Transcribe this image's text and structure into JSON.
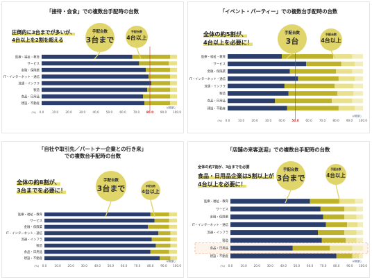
{
  "panels": [
    {
      "title_lines": [
        "「接待・会食」での複数台手配時の台数"
      ],
      "callout": [
        "圧倒的に3台までが多いが、",
        "4台以上を2割を超える"
      ],
      "bubbles": [
        {
          "top": "手配台数",
          "big": "3台まで"
        },
        {
          "top": "手配台数",
          "big": "4台以上"
        }
      ],
      "category_labels": [
        "医療・福祉・教育",
        "サービス",
        "金融・保険業",
        "IT・インターネット・通信",
        "流通・インフラ",
        "製造",
        "食品・日用品",
        "建設・不動産"
      ],
      "data_label": "80.0",
      "note": "以前含む",
      "source": "",
      "highlight_row": null
    },
    {
      "title_lines": [
        "「イベント・パーティー」での複数台手配時の台数"
      ],
      "callout": [
        "全体の約5割が、",
        "4台以上を必要に！"
      ],
      "bubbles": [
        {
          "top": "手配台数",
          "big": "3台"
        },
        {
          "top": "手配台数",
          "big": "4台以上"
        }
      ],
      "category_labels": [
        "医療・福祉・教育",
        "サービス",
        "金融・保険業",
        "IT・インターネット・通信",
        "流通・インフラ",
        "製造",
        "食品・日用品",
        "建設・不動産"
      ],
      "data_label": "50.0",
      "note": "以前含む",
      "source": "",
      "highlight_row": null
    },
    {
      "title_lines": [
        "「自社や取引先／パートナー企業との行き来」",
        "での複数台手配時の台数"
      ],
      "callout": [
        "全体の約8割が、",
        "3台までを必要に！"
      ],
      "bubbles": [
        {
          "top": "手配台数",
          "big": "3台まで"
        },
        {
          "top": "手配台数",
          "big": "4台以上"
        }
      ],
      "category_labels": [
        "医療・福祉・教育",
        "サービス",
        "金融・保険業",
        "IT・インターネット・通信",
        "流通・インフラ",
        "製造",
        "食品・日用品",
        "建設・不動産"
      ],
      "data_label": "",
      "note": "以前含む",
      "source": "",
      "highlight_row": null
    },
    {
      "title_lines": [
        "「店舗の来客送迎」での複数台手配時の台数"
      ],
      "callout_small": "全体の約7割が、3台までを必要",
      "callout": [
        "食品・日用品企業は5割以上が",
        "4台以上を必要に！"
      ],
      "bubbles": [
        {
          "top": "手配台数",
          "big": "3台まで"
        },
        {
          "top": "手配台数",
          "big": "4台以上"
        }
      ],
      "category_labels": [
        "医療・福祉・教育",
        "サービス",
        "金融・保険業",
        "IT・インターネット・通信",
        "流通・インフラ",
        "製造",
        "食品・日用品",
        "建設・不動産"
      ],
      "data_label": "",
      "note": "以前含む",
      "source": "",
      "highlight_row": 6
    }
  ],
  "colors": {
    "navy": "#2b3e6b",
    "olive": "#bfb22b",
    "light_yellow": "#e8e08a",
    "pale_yellow": "#f2edbf",
    "red_label": "#d22a2a",
    "highlight_orange": "#f0b48a"
  },
  "chart_data": [
    {
      "type": "bar",
      "stacked": true,
      "orientation": "horizontal",
      "categories": [
        "医療・福祉・教育",
        "サービス",
        "金融・保険業",
        "IT・インターネット・通信",
        "流通・インフラ",
        "製造",
        "食品・日用品",
        "建設・不動産"
      ],
      "series": [
        {
          "values": [
            67,
            72,
            77,
            79,
            81,
            78,
            75,
            76
          ]
        },
        {
          "values": [
            28,
            22,
            18,
            16,
            14,
            17,
            20,
            19
          ]
        },
        {
          "values": [
            5,
            6,
            5,
            5,
            5,
            5,
            5,
            5
          ]
        }
      ],
      "xlim": [
        0,
        100
      ],
      "xticks": [
        "0.0",
        "10.0",
        "20.0",
        "30.0",
        "40.0",
        "50.0",
        "60.0",
        "70.0",
        "80.0",
        "90.0",
        "100.0"
      ],
      "reference_x": 80
    },
    {
      "type": "bar",
      "stacked": true,
      "orientation": "horizontal",
      "categories": [
        "医療・福祉・教育",
        "サービス",
        "金融・保険業",
        "IT・インターネット・通信",
        "流通・インフラ",
        "製造",
        "食品・日用品",
        "建設・不動産"
      ],
      "series": [
        {
          "values": [
            40,
            58,
            46,
            52,
            42,
            45,
            35,
            44
          ]
        },
        {
          "values": [
            38,
            26,
            34,
            30,
            37,
            36,
            42,
            38
          ]
        },
        {
          "values": [
            14,
            10,
            12,
            12,
            14,
            12,
            15,
            12
          ]
        },
        {
          "values": [
            8,
            6,
            8,
            6,
            7,
            7,
            8,
            6
          ]
        }
      ],
      "xlim": [
        0,
        100
      ],
      "xticks": [
        "0.0",
        "10.0",
        "20.0",
        "30.0",
        "40.0",
        "50.0",
        "60.0",
        "70.0",
        "80.0",
        "90.0",
        "100.0"
      ],
      "reference_x": 50
    },
    {
      "type": "bar",
      "stacked": true,
      "orientation": "horizontal",
      "categories": [
        "医療・福祉・教育",
        "サービス",
        "金融・保険業",
        "IT・インターネット・通信",
        "流通・インフラ",
        "製造",
        "食品・日用品",
        "建設・不動産"
      ],
      "series": [
        {
          "values": [
            80,
            83,
            78,
            86,
            81,
            84,
            80,
            87
          ]
        },
        {
          "values": [
            14,
            11,
            16,
            9,
            14,
            11,
            14,
            8
          ]
        },
        {
          "values": [
            6,
            6,
            6,
            5,
            5,
            5,
            6,
            5
          ]
        }
      ],
      "xlim": [
        0,
        100
      ],
      "xticks": [
        "0.0",
        "10.0",
        "20.0",
        "30.0",
        "40.0",
        "50.0",
        "60.0",
        "70.0",
        "80.0",
        "90.0",
        "100.0"
      ],
      "reference_x": null
    },
    {
      "type": "bar",
      "stacked": true,
      "orientation": "horizontal",
      "categories": [
        "医療・福祉・教育",
        "サービス",
        "金融・保険業",
        "IT・インターネット・通信",
        "流通・インフラ",
        "製造",
        "食品・日用品",
        "建設・不動産"
      ],
      "series": [
        {
          "values": [
            60,
            68,
            70,
            72,
            66,
            69,
            47,
            80
          ]
        },
        {
          "values": [
            22,
            18,
            16,
            16,
            20,
            18,
            28,
            12
          ]
        },
        {
          "values": [
            12,
            9,
            9,
            8,
            9,
            8,
            17,
            5
          ]
        },
        {
          "values": [
            6,
            5,
            5,
            4,
            5,
            5,
            8,
            3
          ]
        }
      ],
      "xlim": [
        0,
        100
      ],
      "xticks": [
        "0.0",
        "10.0",
        "20.0",
        "30.0",
        "40.0",
        "50.0",
        "60.0",
        "70.0",
        "80.0",
        "90.0",
        "100.0"
      ],
      "reference_x": null
    }
  ]
}
